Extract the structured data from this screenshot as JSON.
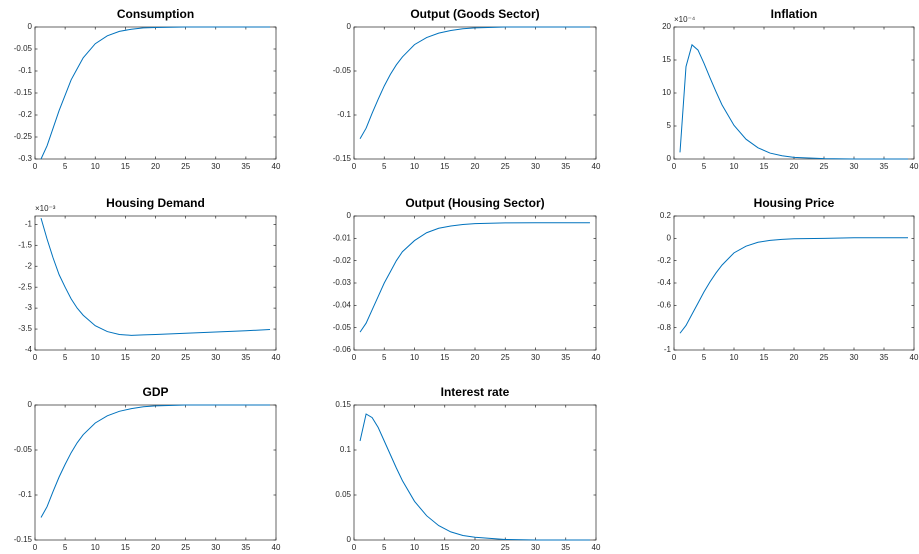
{
  "chart_data": [
    {
      "type": "line",
      "title": "Consumption",
      "color": "#0072bd",
      "x": [
        1,
        2,
        3,
        4,
        5,
        6,
        7,
        8,
        10,
        12,
        14,
        16,
        18,
        20,
        25,
        30,
        35,
        39
      ],
      "values": [
        -0.3,
        -0.27,
        -0.23,
        -0.19,
        -0.155,
        -0.12,
        -0.095,
        -0.07,
        -0.038,
        -0.02,
        -0.01,
        -0.005,
        -0.002,
        -0.001,
        0,
        0,
        0,
        0
      ],
      "xlim": [
        0,
        40
      ],
      "xticks": [
        0,
        5,
        10,
        15,
        20,
        25,
        30,
        35,
        40
      ],
      "ylim": [
        -0.3,
        0
      ],
      "yticks": [
        -0.3,
        -0.25,
        -0.2,
        -0.15,
        -0.1,
        -0.05,
        0
      ]
    },
    {
      "type": "line",
      "title": "Output (Goods Sector)",
      "color": "#0072bd",
      "x": [
        1,
        2,
        3,
        4,
        5,
        6,
        7,
        8,
        10,
        12,
        14,
        16,
        18,
        20,
        25,
        30,
        35,
        39
      ],
      "values": [
        -0.127,
        -0.115,
        -0.098,
        -0.082,
        -0.067,
        -0.054,
        -0.043,
        -0.034,
        -0.02,
        -0.012,
        -0.007,
        -0.004,
        -0.002,
        -0.001,
        0,
        0,
        0,
        0
      ],
      "xlim": [
        0,
        40
      ],
      "xticks": [
        0,
        5,
        10,
        15,
        20,
        25,
        30,
        35,
        40
      ],
      "ylim": [
        -0.15,
        0
      ],
      "yticks": [
        -0.15,
        -0.1,
        -0.05,
        0
      ]
    },
    {
      "type": "line",
      "title": "Inflation",
      "color": "#0072bd",
      "y_multiplier": "×10⁻⁴",
      "x": [
        1,
        2,
        3,
        4,
        5,
        6,
        7,
        8,
        10,
        12,
        14,
        16,
        18,
        20,
        25,
        30,
        35,
        39
      ],
      "values": [
        1,
        14,
        17.3,
        16.5,
        14.5,
        12.3,
        10.2,
        8.2,
        5.1,
        3.0,
        1.7,
        0.9,
        0.5,
        0.25,
        0.05,
        0,
        0,
        0
      ],
      "xlim": [
        0,
        40
      ],
      "xticks": [
        0,
        5,
        10,
        15,
        20,
        25,
        30,
        35,
        40
      ],
      "ylim": [
        0,
        20
      ],
      "yticks": [
        0,
        5,
        10,
        15,
        20
      ]
    },
    {
      "type": "line",
      "title": "Housing Demand",
      "color": "#0072bd",
      "y_multiplier": "×10⁻³",
      "x": [
        1,
        2,
        3,
        4,
        5,
        6,
        7,
        8,
        10,
        12,
        14,
        16,
        18,
        20,
        25,
        30,
        35,
        39
      ],
      "values": [
        -0.85,
        -1.35,
        -1.8,
        -2.2,
        -2.5,
        -2.78,
        -3.0,
        -3.17,
        -3.42,
        -3.56,
        -3.63,
        -3.65,
        -3.64,
        -3.63,
        -3.6,
        -3.57,
        -3.54,
        -3.51
      ],
      "xlim": [
        0,
        40
      ],
      "xticks": [
        0,
        5,
        10,
        15,
        20,
        25,
        30,
        35,
        40
      ],
      "ylim": [
        -4,
        -0.8
      ],
      "yticks": [
        -4,
        -3.5,
        -3,
        -2.5,
        -2,
        -1.5,
        -1
      ]
    },
    {
      "type": "line",
      "title": "Output (Housing Sector)",
      "color": "#0072bd",
      "x": [
        1,
        2,
        3,
        4,
        5,
        6,
        7,
        8,
        10,
        12,
        14,
        16,
        18,
        20,
        25,
        30,
        35,
        39
      ],
      "values": [
        -0.052,
        -0.048,
        -0.042,
        -0.036,
        -0.03,
        -0.025,
        -0.02,
        -0.016,
        -0.011,
        -0.0075,
        -0.0055,
        -0.0045,
        -0.0038,
        -0.0034,
        -0.0031,
        -0.003,
        -0.003,
        -0.003
      ],
      "xlim": [
        0,
        40
      ],
      "xticks": [
        0,
        5,
        10,
        15,
        20,
        25,
        30,
        35,
        40
      ],
      "ylim": [
        -0.06,
        0
      ],
      "yticks": [
        -0.06,
        -0.05,
        -0.04,
        -0.03,
        -0.02,
        -0.01,
        0
      ]
    },
    {
      "type": "line",
      "title": "Housing Price",
      "color": "#0072bd",
      "x": [
        1,
        2,
        3,
        4,
        5,
        6,
        7,
        8,
        10,
        12,
        14,
        16,
        18,
        20,
        25,
        30,
        35,
        39
      ],
      "values": [
        -0.85,
        -0.78,
        -0.68,
        -0.58,
        -0.48,
        -0.39,
        -0.31,
        -0.24,
        -0.13,
        -0.07,
        -0.035,
        -0.018,
        -0.009,
        -0.004,
        0,
        0.005,
        0.005,
        0.005
      ],
      "xlim": [
        0,
        40
      ],
      "xticks": [
        0,
        5,
        10,
        15,
        20,
        25,
        30,
        35,
        40
      ],
      "ylim": [
        -1,
        0.2
      ],
      "yticks": [
        -1,
        -0.8,
        -0.6,
        -0.4,
        -0.2,
        0,
        0.2
      ]
    },
    {
      "type": "line",
      "title": "GDP",
      "color": "#0072bd",
      "x": [
        1,
        2,
        3,
        4,
        5,
        6,
        7,
        8,
        10,
        12,
        14,
        16,
        18,
        20,
        25,
        30,
        35,
        39
      ],
      "values": [
        -0.125,
        -0.113,
        -0.096,
        -0.08,
        -0.066,
        -0.053,
        -0.042,
        -0.033,
        -0.02,
        -0.012,
        -0.007,
        -0.004,
        -0.002,
        -0.001,
        0,
        0,
        0,
        0
      ],
      "xlim": [
        0,
        40
      ],
      "xticks": [
        0,
        5,
        10,
        15,
        20,
        25,
        30,
        35,
        40
      ],
      "ylim": [
        -0.15,
        0
      ],
      "yticks": [
        -0.15,
        -0.1,
        -0.05,
        0
      ]
    },
    {
      "type": "line",
      "title": "Interest rate",
      "color": "#0072bd",
      "x": [
        1,
        2,
        3,
        4,
        5,
        6,
        7,
        8,
        10,
        12,
        14,
        16,
        18,
        20,
        25,
        30,
        35,
        39
      ],
      "values": [
        0.11,
        0.14,
        0.136,
        0.125,
        0.11,
        0.095,
        0.08,
        0.066,
        0.043,
        0.027,
        0.016,
        0.009,
        0.005,
        0.003,
        0.0006,
        0,
        0,
        0
      ],
      "xlim": [
        0,
        40
      ],
      "xticks": [
        0,
        5,
        10,
        15,
        20,
        25,
        30,
        35,
        40
      ],
      "ylim": [
        0,
        0.15
      ],
      "yticks": [
        0,
        0.05,
        0.1,
        0.15
      ]
    }
  ]
}
